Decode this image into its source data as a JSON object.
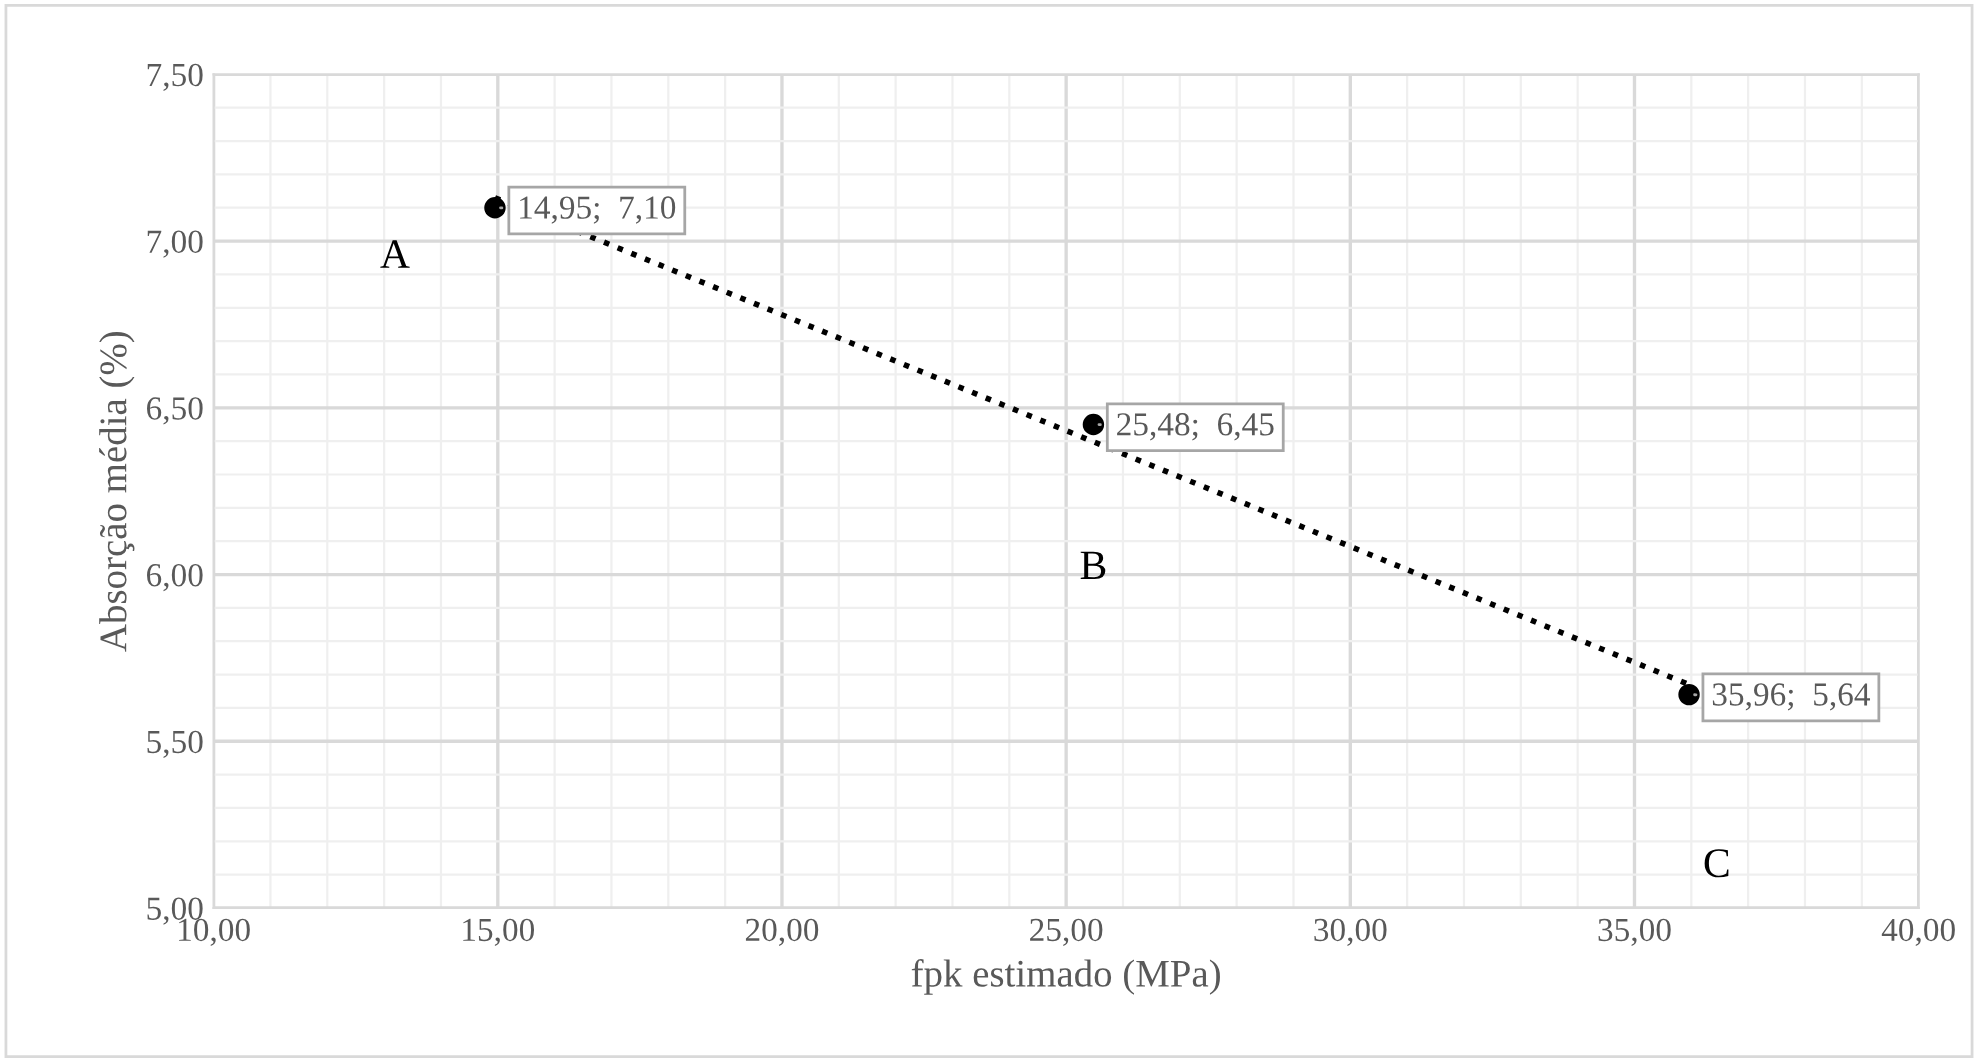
{
  "chart_data": {
    "type": "scatter",
    "xlabel": "fpk estimado (MPa)",
    "ylabel": "Absorção média (%)",
    "series": [
      {
        "color": "#000000",
        "x": [
          14.95,
          25.48,
          35.96
        ],
        "values": [
          7.1,
          6.45,
          5.64
        ],
        "value_labels": [
          "14,95;  7,10",
          "25,48;  6,45",
          "35,96;  5,64"
        ],
        "marker": "circle"
      },
      {
        "type": "line",
        "color": "#000000",
        "x": [
          14.95,
          35.96
        ],
        "values": [
          7.13,
          5.67
        ],
        "line_style": "dotted",
        "marker": "none"
      }
    ],
    "annotations": [
      "A",
      "B",
      "C"
    ],
    "xlim": [
      10,
      40
    ],
    "xticks": [
      {
        "value": 10,
        "label": "10,00"
      },
      {
        "value": 15,
        "label": "15,00"
      },
      {
        "value": 20,
        "label": "20,00"
      },
      {
        "value": 25,
        "label": "25,00"
      },
      {
        "value": 30,
        "label": "30,00"
      },
      {
        "value": 35,
        "label": "35,00"
      },
      {
        "value": 40,
        "label": "40,00"
      }
    ],
    "ylim": [
      5,
      7.5
    ],
    "yticks": [
      {
        "value": 5,
        "label": "5,00"
      },
      {
        "value": 5.5,
        "label": "5,50"
      },
      {
        "value": 6,
        "label": "6,00"
      },
      {
        "value": 6.5,
        "label": "6,50"
      },
      {
        "value": 7,
        "label": "7,00"
      },
      {
        "value": 7.5,
        "label": "7,50"
      }
    ],
    "grid": true,
    "legend": false
  }
}
